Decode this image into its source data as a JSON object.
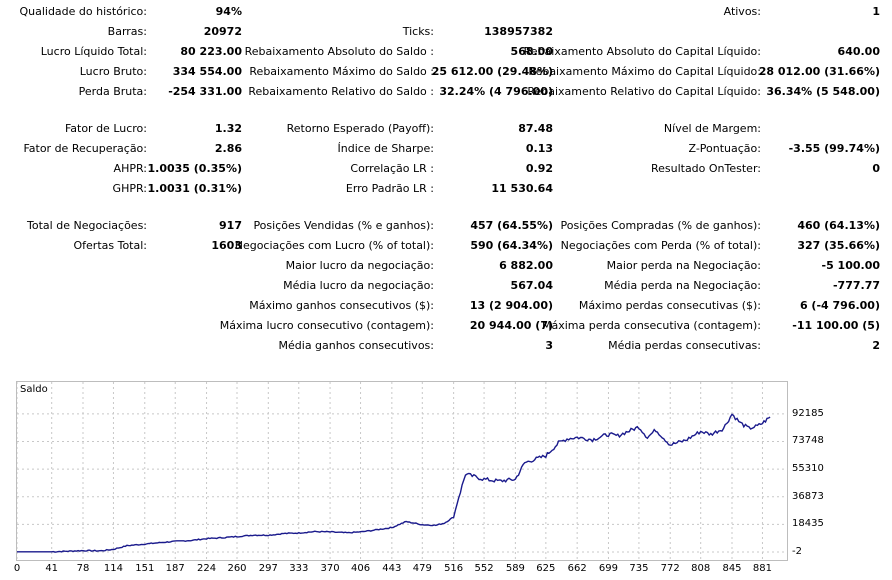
{
  "stats": {
    "col1": [
      {
        "label": "Qualidade do histórico:",
        "value": "94%"
      },
      {
        "label": "Barras:",
        "value": "20972"
      },
      {
        "label": "Lucro Líquido Total:",
        "value": "80 223.00"
      },
      {
        "label": "Lucro Bruto:",
        "value": "334 554.00"
      },
      {
        "label": "Perda Bruta:",
        "value": "-254 331.00"
      },
      {
        "label": "Fator de Lucro:",
        "value": "1.32"
      },
      {
        "label": "Fator de Recuperação:",
        "value": "2.86"
      },
      {
        "label": "AHPR:",
        "value": "1.0035 (0.35%)"
      },
      {
        "label": "GHPR:",
        "value": "1.0031 (0.31%)"
      },
      {
        "label": "Total de Negociações:",
        "value": "917"
      },
      {
        "label": "Ofertas Total:",
        "value": "1603"
      }
    ],
    "col2": [
      {
        "label": "Ticks:",
        "value": "138957382"
      },
      {
        "label": "Rebaixamento Absoluto do Saldo :",
        "value": "568.00"
      },
      {
        "label": "Rebaixamento Máximo do Saldo :",
        "value": "25 612.00 (29.48%)"
      },
      {
        "label": "Rebaixamento Relativo do Saldo :",
        "value": "32.24% (4 796.00)"
      },
      {
        "label": "Retorno Esperado (Payoff):",
        "value": "87.48"
      },
      {
        "label": "Índice de Sharpe:",
        "value": "0.13"
      },
      {
        "label": "Correlação LR :",
        "value": "0.92"
      },
      {
        "label": "Erro Padrão LR :",
        "value": "11 530.64"
      },
      {
        "label": "Posições Vendidas (% e ganhos):",
        "value": "457 (64.55%)"
      },
      {
        "label": "Negociações com Lucro (% of total):",
        "value": "590 (64.34%)"
      },
      {
        "label": "Maior lucro da negociação:",
        "value": "6 882.00"
      },
      {
        "label": "Média lucro da negociação:",
        "value": "567.04"
      },
      {
        "label": "Máximo ganhos consecutivos ($):",
        "value": "13 (2 904.00)"
      },
      {
        "label": "Máxima lucro consecutivo (contagem):",
        "value": "20 944.00 (7)"
      },
      {
        "label": "Média ganhos consecutivos:",
        "value": "3"
      }
    ],
    "col3": [
      {
        "label": "Ativos:",
        "value": "1"
      },
      {
        "label": "Rebaixamento Absoluto do Capital Líquido:",
        "value": "640.00"
      },
      {
        "label": "Rebaixamento Máximo do Capital Líquido:",
        "value": "28 012.00 (31.66%)"
      },
      {
        "label": "Rebaixamento Relativo do Capital Líquido:",
        "value": "36.34% (5 548.00)"
      },
      {
        "label": "Nível de Margem:",
        "value": ""
      },
      {
        "label": "Z-Pontuação:",
        "value": "-3.55 (99.74%)"
      },
      {
        "label": "Resultado OnTester:",
        "value": "0"
      },
      {
        "label": "Posições Compradas (% de ganhos):",
        "value": "460 (64.13%)"
      },
      {
        "label": "Negociações com Perda (% of total):",
        "value": "327 (35.66%)"
      },
      {
        "label": "Maior perda na Negociação:",
        "value": "-5 100.00"
      },
      {
        "label": "Média perda na Negociação:",
        "value": "-777.77"
      },
      {
        "label": "Máximo perdas consecutivas ($):",
        "value": "6 (-4 796.00)"
      },
      {
        "label": "Máxima perda consecutiva (contagem):",
        "value": "-11 100.00 (5)"
      },
      {
        "label": "Média perdas consecutivas:",
        "value": "2"
      }
    ]
  },
  "chart_data": {
    "type": "line",
    "title": "Saldo",
    "line_color": "#1a1a8c",
    "grid": true,
    "xlim": [
      0,
      910
    ],
    "ylim": [
      -2,
      101420
    ],
    "x_ticks": [
      "0",
      "41",
      "78",
      "114",
      "151",
      "187",
      "224",
      "260",
      "297",
      "333",
      "370",
      "406",
      "443",
      "479",
      "516",
      "552",
      "589",
      "625",
      "662",
      "699",
      "735",
      "772",
      "808",
      "845",
      "881"
    ],
    "y_ticks": [
      "92185",
      "73748",
      "55310",
      "36873",
      "18435",
      "-2"
    ],
    "series": [
      {
        "x": [
          0,
          41,
          78,
          100,
          114,
          130,
          151,
          170,
          187,
          205,
          224,
          242,
          260,
          280,
          297,
          315,
          333,
          352,
          370,
          390,
          406,
          420,
          443,
          460,
          479,
          495,
          505,
          516,
          522,
          530,
          552,
          570,
          589,
          600,
          610,
          625,
          640,
          650,
          662,
          680,
          699,
          710,
          720,
          735,
          745,
          755,
          772,
          790,
          808,
          820,
          835,
          845,
          855,
          865,
          875,
          881,
          890
        ],
        "y": [
          150,
          150,
          900,
          800,
          1800,
          4200,
          5300,
          6300,
          7100,
          7700,
          8900,
          9500,
          10300,
          11300,
          11200,
          12300,
          12700,
          13600,
          13400,
          12800,
          13400,
          14400,
          16300,
          20300,
          18200,
          17800,
          19300,
          23300,
          36300,
          52000,
          48500,
          47300,
          48500,
          59500,
          61500,
          64200,
          72800,
          75500,
          76500,
          75000,
          78500,
          77500,
          80000,
          83500,
          76500,
          81500,
          71500,
          74500,
          80500,
          78500,
          82500,
          92000,
          86000,
          82500,
          84000,
          86000,
          90000
        ]
      }
    ]
  }
}
